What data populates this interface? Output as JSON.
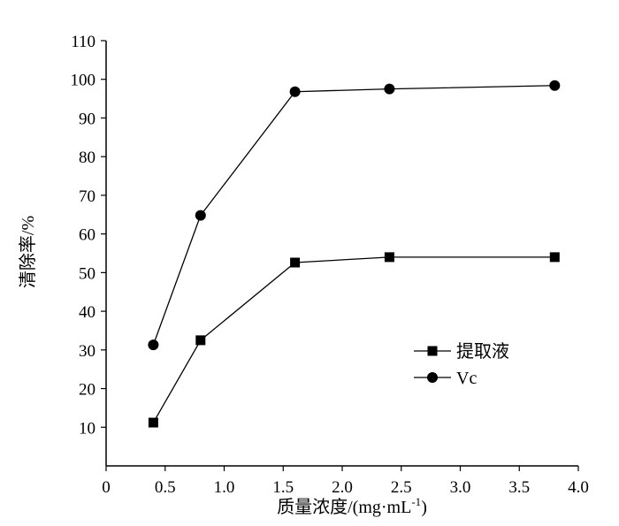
{
  "chart_data": {
    "type": "line",
    "title": "",
    "xlabel": "质量浓度/(mg·mL",
    "xlabel_sup": "-1",
    "xlabel_end": ")",
    "ylabel": "清除率/%",
    "xlim": [
      0,
      4.0
    ],
    "ylim": [
      0,
      110
    ],
    "xticks": [
      "0",
      "0.5",
      "1.0",
      "1.5",
      "2.0",
      "2.5",
      "3.0",
      "3.5",
      "4.0"
    ],
    "xtick_values": [
      0,
      0.5,
      1.0,
      1.5,
      2.0,
      2.5,
      3.0,
      3.5,
      4.0
    ],
    "yticks": [
      "10",
      "20",
      "30",
      "40",
      "50",
      "60",
      "70",
      "80",
      "90",
      "100",
      "110"
    ],
    "ytick_values": [
      10,
      20,
      30,
      40,
      50,
      60,
      70,
      80,
      90,
      100,
      110
    ],
    "grid": false,
    "legend_position": "center-right",
    "x": [
      0.4,
      0.8,
      1.6,
      2.4,
      3.8
    ],
    "series": [
      {
        "name": "提取液",
        "marker": "square",
        "values": [
          11.2,
          32.5,
          52.6,
          54.0,
          54.0
        ]
      },
      {
        "name": "Vc",
        "marker": "circle",
        "values": [
          31.3,
          64.8,
          96.8,
          97.5,
          98.4
        ]
      }
    ]
  }
}
